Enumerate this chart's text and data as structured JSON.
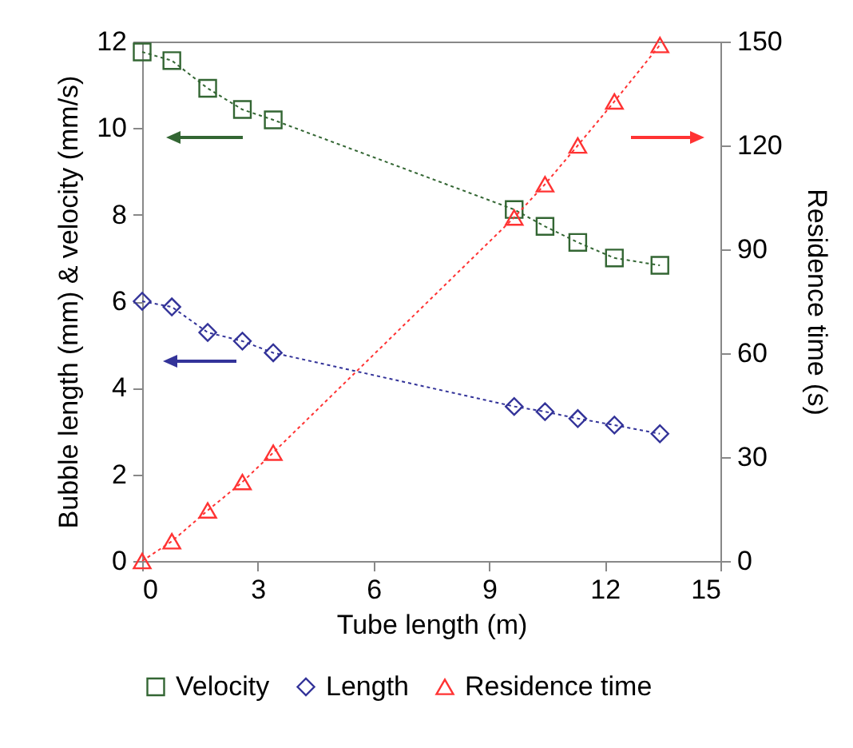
{
  "chart_data": {
    "type": "line",
    "xlabel": "Tube length (m)",
    "ylabel": "Bubble length (mm) & velocity (mm/s)",
    "y2label": "Residence time (s)",
    "x": [
      0,
      0.77,
      1.7,
      2.6,
      3.4,
      9.65,
      10.45,
      11.3,
      12.25,
      13.43
    ],
    "series": [
      {
        "name": "Velocity",
        "color": "#336633",
        "marker": "square",
        "values": [
          11.76,
          11.56,
          10.92,
          10.43,
          10.19,
          8.12,
          7.73,
          7.36,
          7.0,
          6.83
        ]
      },
      {
        "name": "Length",
        "color": "#333399",
        "marker": "diamond",
        "values": [
          6.0,
          5.87,
          5.28,
          5.08,
          4.81,
          3.57,
          3.45,
          3.29,
          3.14,
          2.94
        ]
      },
      {
        "name": "Residence time",
        "color": "#ff3333",
        "marker": "triangle",
        "axis": "y2",
        "values": [
          0,
          5.7,
          14.6,
          22.8,
          31.3,
          99.2,
          108.8,
          120,
          132.7,
          149
        ]
      }
    ],
    "xlim": [
      0,
      15
    ],
    "xticks": [
      0,
      3,
      6,
      9,
      12,
      15
    ],
    "ylim": [
      0,
      12
    ],
    "yticks": [
      0,
      2,
      4,
      6,
      8,
      10,
      12
    ],
    "y2lim": [
      0,
      150
    ],
    "y2ticks": [
      0,
      30,
      60,
      90,
      120,
      150
    ],
    "grid": false,
    "legend": "bottom",
    "line_style": "dotted"
  }
}
